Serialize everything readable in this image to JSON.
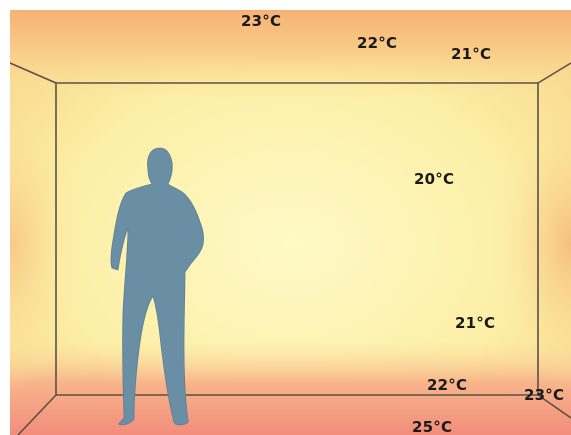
{
  "temperatures": {
    "ceiling_center": "23°C",
    "ceiling_right": "22°C",
    "upper_right": "21°C",
    "middle_right": "20°C",
    "lower_right": "21°C",
    "near_floor_right": "22°C",
    "floor_corner_right": "23°C",
    "floor": "25°C"
  },
  "colors": {
    "warm_edge": "#f7a96a",
    "wall_center": "#fdf6bd",
    "line": "#5a5147",
    "silhouette": "#6a8ea3"
  },
  "icons": {
    "person": "standing-person-silhouette"
  }
}
